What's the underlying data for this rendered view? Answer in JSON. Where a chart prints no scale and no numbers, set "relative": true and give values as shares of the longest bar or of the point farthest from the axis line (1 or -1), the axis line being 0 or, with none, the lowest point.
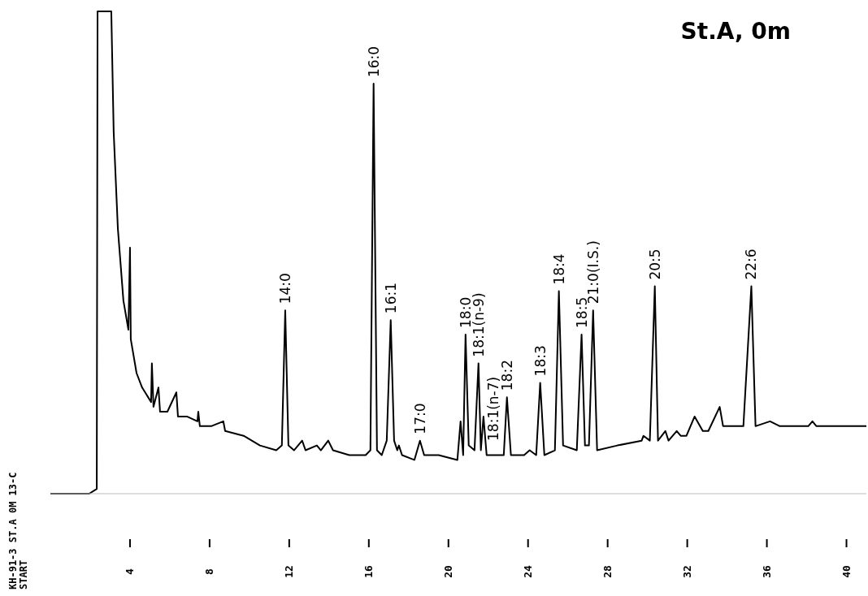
{
  "chart_data": {
    "type": "line",
    "title": "St.A, 0m",
    "relative": true,
    "color": "#000000",
    "marker": "none",
    "line_style": "solid",
    "grid": false,
    "legend": false,
    "x": [
      0,
      1.95,
      2.33,
      2.37,
      3.06,
      3.18,
      3.39,
      3.67,
      3.92,
      4.0,
      4.04,
      4.33,
      4.61,
      5.06,
      5.1,
      5.18,
      5.43,
      5.51,
      5.88,
      6.33,
      6.41,
      6.86,
      7.39,
      7.43,
      7.51,
      8.08,
      8.69,
      8.78,
      9.71,
      10.53,
      11.35,
      11.63,
      11.8,
      11.96,
      12.24,
      12.65,
      12.82,
      13.39,
      13.59,
      13.96,
      14.2,
      15.02,
      15.84,
      16.08,
      16.24,
      16.41,
      16.65,
      16.9,
      17.1,
      17.27,
      17.43,
      17.51,
      17.67,
      18.29,
      18.57,
      18.78,
      19.51,
      20.45,
      20.61,
      20.74,
      20.86,
      21.02,
      21.31,
      21.51,
      21.63,
      21.76,
      21.92,
      22.78,
      22.94,
      23.14,
      23.8,
      24.08,
      24.41,
      24.61,
      24.82,
      25.35,
      25.55,
      25.76,
      26.45,
      26.69,
      26.86,
      27.06,
      27.27,
      27.47,
      28.49,
      29.71,
      29.8,
      30.12,
      30.37,
      30.53,
      30.9,
      31.06,
      31.47,
      31.67,
      31.96,
      32.37,
      32.78,
      33.06,
      33.63,
      33.8,
      34.4,
      34.82,
      35.22,
      35.43,
      36.16,
      36.65,
      38.08,
      38.29,
      38.49,
      39.92,
      41.0
    ],
    "values": [
      0,
      0,
      0.01,
      1,
      1,
      0.75,
      0.55,
      0.4,
      0.34,
      0.51,
      0.32,
      0.25,
      0.22,
      0.19,
      0.27,
      0.18,
      0.22,
      0.17,
      0.17,
      0.21,
      0.16,
      0.16,
      0.15,
      0.17,
      0.14,
      0.14,
      0.15,
      0.13,
      0.12,
      0.1,
      0.09,
      0.1,
      0.38,
      0.1,
      0.09,
      0.11,
      0.09,
      0.1,
      0.09,
      0.11,
      0.09,
      0.08,
      0.08,
      0.09,
      0.85,
      0.09,
      0.08,
      0.11,
      0.36,
      0.11,
      0.09,
      0.1,
      0.08,
      0.07,
      0.11,
      0.08,
      0.08,
      0.07,
      0.15,
      0.08,
      0.33,
      0.1,
      0.09,
      0.27,
      0.09,
      0.16,
      0.08,
      0.08,
      0.2,
      0.08,
      0.08,
      0.09,
      0.08,
      0.23,
      0.08,
      0.09,
      0.42,
      0.1,
      0.09,
      0.33,
      0.1,
      0.1,
      0.38,
      0.09,
      0.1,
      0.11,
      0.12,
      0.11,
      0.43,
      0.11,
      0.13,
      0.11,
      0.13,
      0.12,
      0.12,
      0.16,
      0.13,
      0.13,
      0.18,
      0.14,
      0.14,
      0.14,
      0.43,
      0.14,
      0.15,
      0.14,
      0.14,
      0.15,
      0.14,
      0.14,
      0.14
    ],
    "xlim": [
      0,
      41
    ],
    "xticks": [
      4,
      8,
      12,
      16,
      20,
      24,
      28,
      32,
      36,
      40
    ],
    "annotations": [
      "KH-91-3 ST.A 0M 13-C",
      "START",
      {
        "text": "14:0",
        "x": 11.8,
        "y": 0.38
      },
      {
        "text": "16:0",
        "x": 16.24,
        "y": 0.85
      },
      {
        "text": "16:1",
        "x": 17.1,
        "y": 0.36
      },
      {
        "text": "17:0",
        "x": 18.57,
        "y": 0.11
      },
      {
        "text": "18:0",
        "x": 20.86,
        "y": 0.33
      },
      {
        "text": "18:1(n-9)",
        "x": 21.51,
        "y": 0.27
      },
      {
        "text": "18:1(n-7)",
        "x": 21.76,
        "y": 0.16
      },
      {
        "text": "18:2",
        "x": 22.94,
        "y": 0.2
      },
      {
        "text": "18:3",
        "x": 24.61,
        "y": 0.23
      },
      {
        "text": "18:4",
        "x": 25.55,
        "y": 0.42
      },
      {
        "text": "18:5",
        "x": 26.69,
        "y": 0.33
      },
      {
        "text": "21:0(I.S.)",
        "x": 27.27,
        "y": 0.38
      },
      {
        "text": "20:5",
        "x": 30.37,
        "y": 0.43
      },
      {
        "text": "22:6",
        "x": 35.22,
        "y": 0.43
      }
    ]
  }
}
